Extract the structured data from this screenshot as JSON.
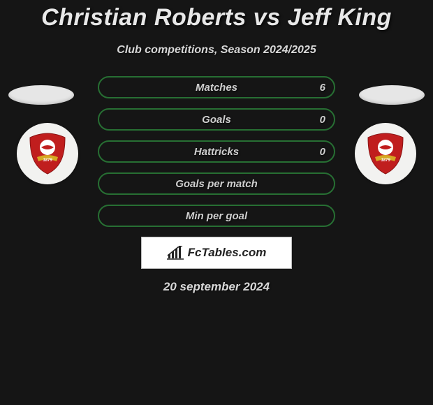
{
  "title": "Christian Roberts vs Jeff King",
  "subtitle": "Club competitions, Season 2024/2025",
  "date": "20 september 2024",
  "logo_text": "FcTables.com",
  "stat_rows": [
    {
      "label": "Matches",
      "left": "",
      "right": "6",
      "border_color": "#276f33"
    },
    {
      "label": "Goals",
      "left": "",
      "right": "0",
      "border_color": "#276f33"
    },
    {
      "label": "Hattricks",
      "left": "",
      "right": "0",
      "border_color": "#276f33"
    },
    {
      "label": "Goals per match",
      "left": "",
      "right": "",
      "border_color": "#276f33"
    },
    {
      "label": "Min per goal",
      "left": "",
      "right": "",
      "border_color": "#276f33"
    }
  ],
  "palette": {
    "background": "#151515",
    "text_light": "#e8e8e8",
    "row_text": "#cfcfcf",
    "logo_bg": "#ffffff",
    "badge_bg": "#f2f2f0",
    "shield_red": "#c01e1e",
    "shield_white": "#ffffff",
    "shield_gold": "#d6a823"
  }
}
